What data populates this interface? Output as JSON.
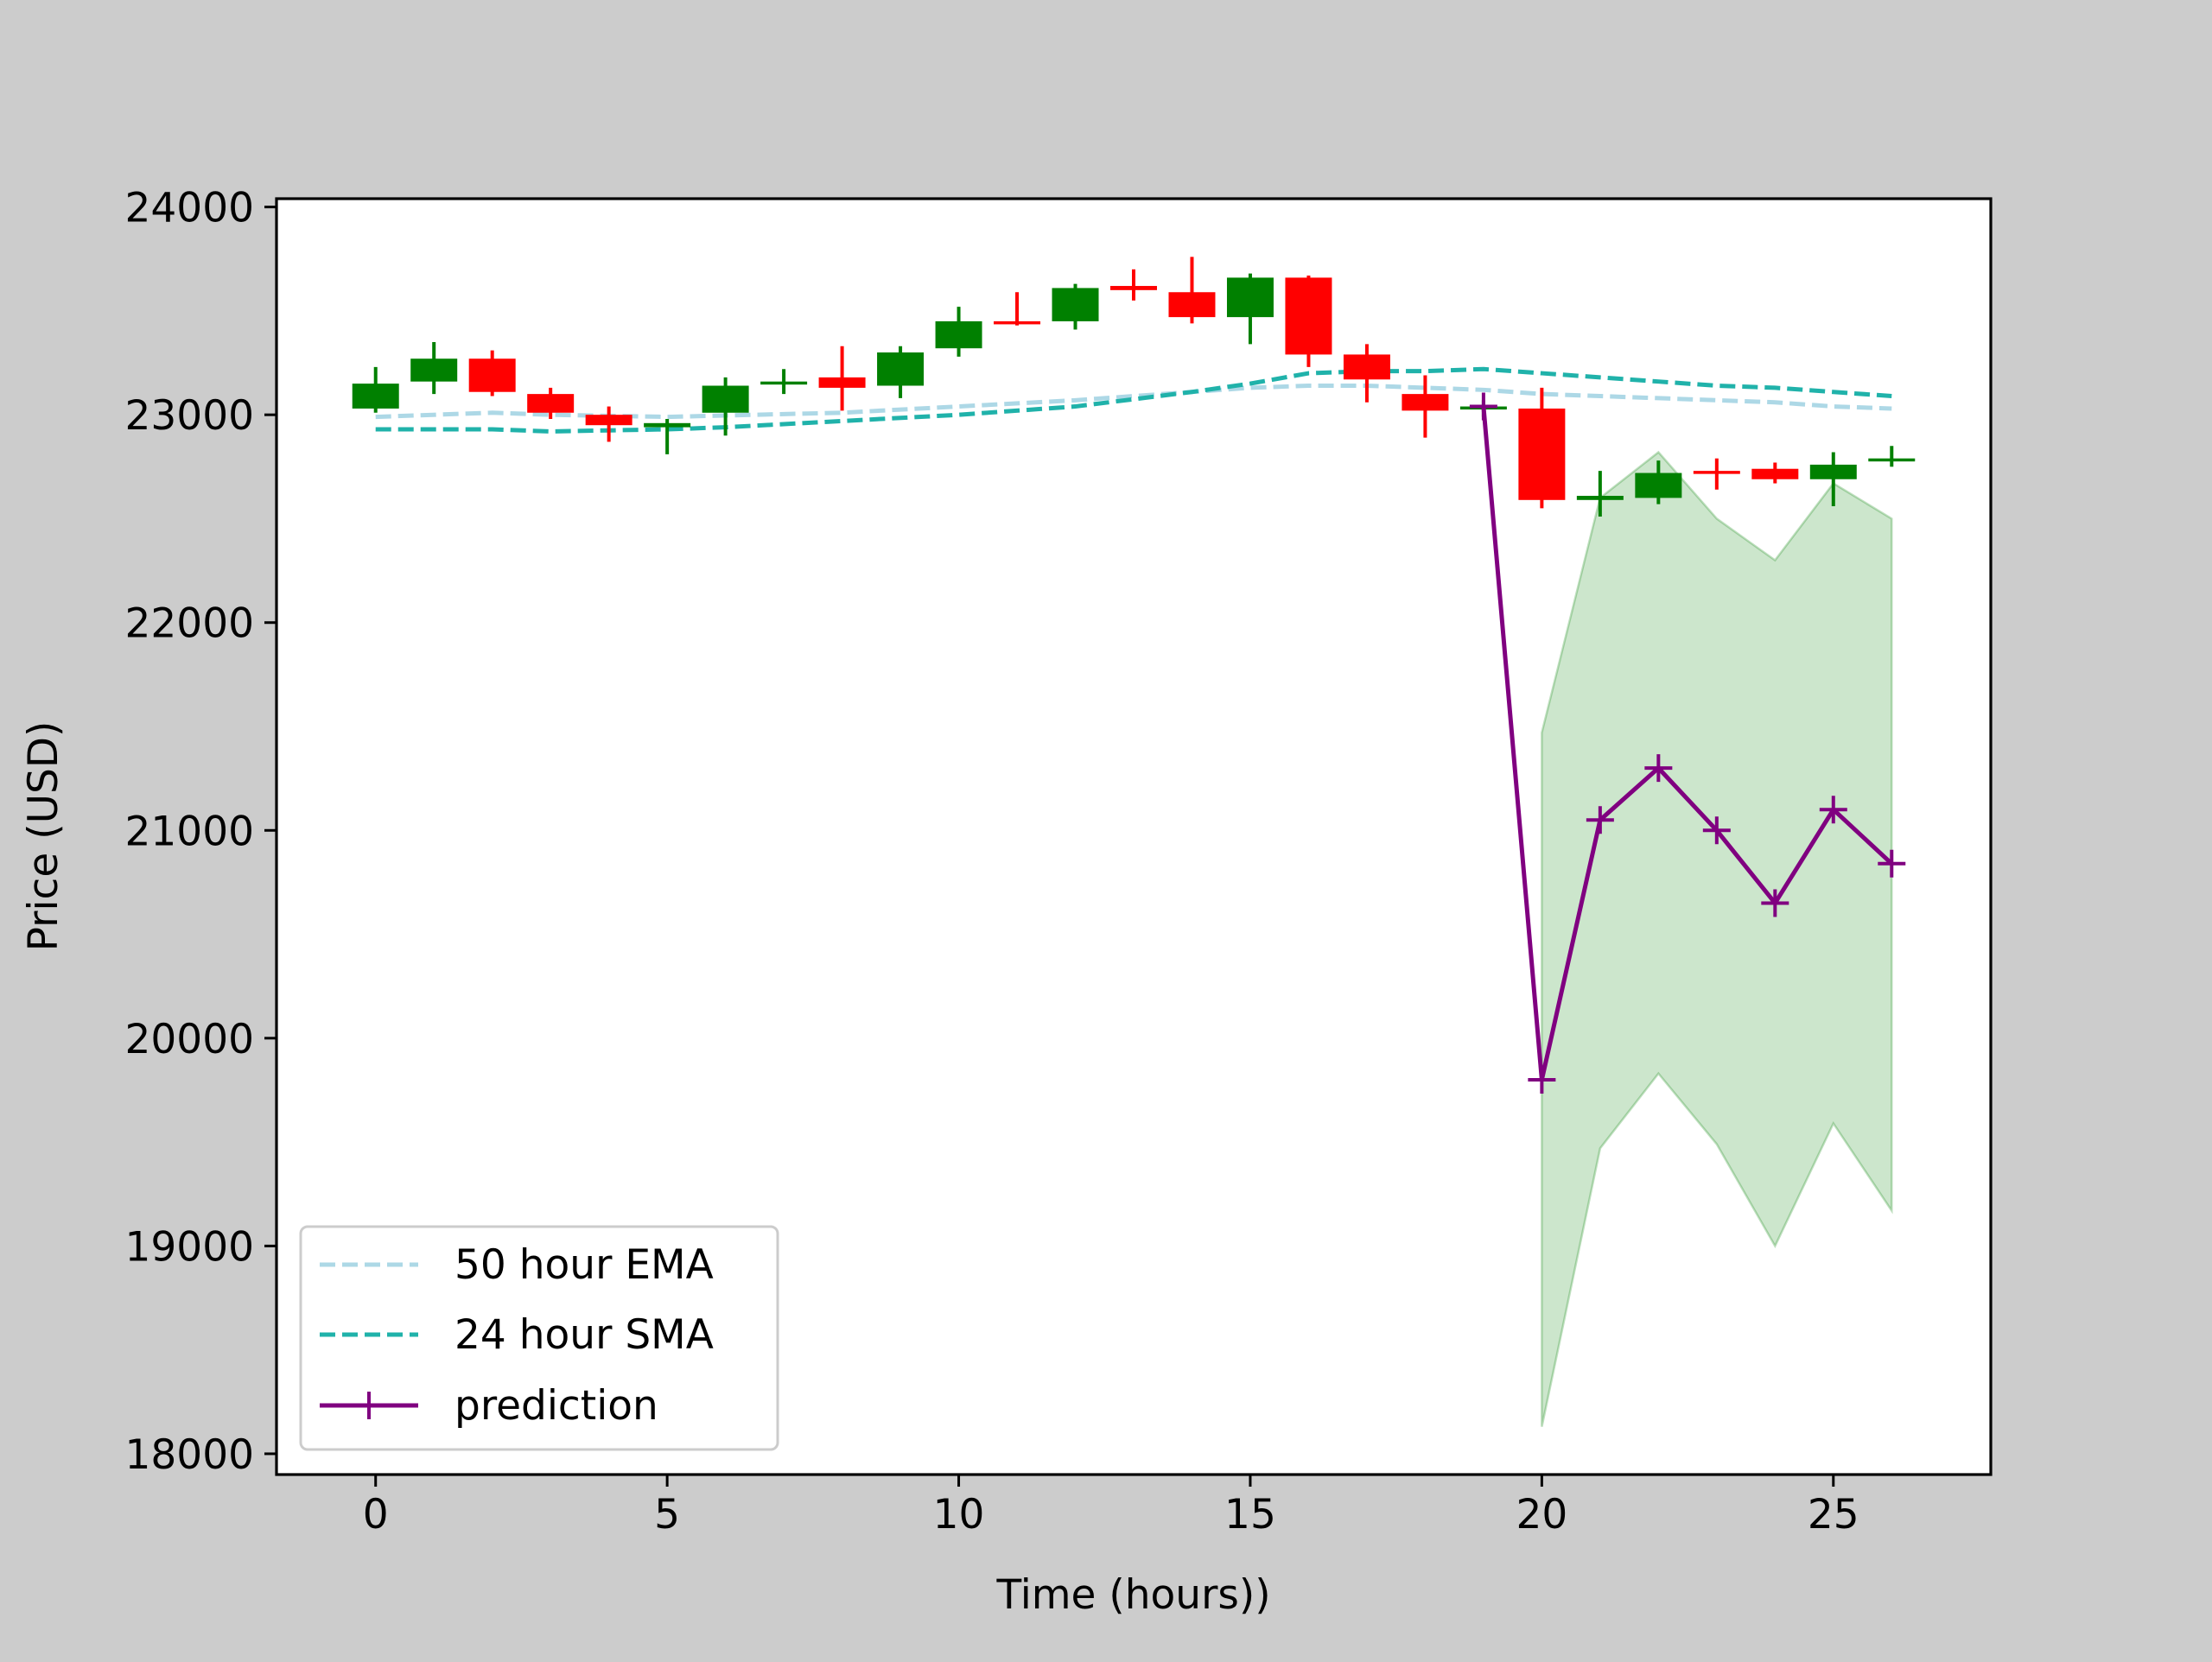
{
  "chart_data": {
    "type": "candlestick",
    "title": "",
    "xlabel": "Time (hours))",
    "ylabel": "Price (USD)",
    "xlim": [
      -1.7,
      27.7
    ],
    "ylim": [
      17900,
      24040
    ],
    "xticks": [
      0,
      5,
      10,
      15,
      20,
      25
    ],
    "yticks": [
      18000,
      19000,
      20000,
      21000,
      22000,
      23000,
      24000
    ],
    "grid": false,
    "legend_position": "lower-left",
    "colors": {
      "background": "#cccccc",
      "up": "#008000",
      "down": "#ff0000",
      "ema": "#add8e6",
      "sma": "#20b2aa",
      "prediction": "#800080",
      "band": "#008000"
    },
    "legend": [
      {
        "label": "50 hour EMA",
        "color": "#add8e6",
        "style": "dashed"
      },
      {
        "label": "24 hour SMA",
        "color": "#20b2aa",
        "style": "dashed"
      },
      {
        "label": "prediction",
        "color": "#800080",
        "style": "solid-plus-marker"
      }
    ],
    "candles": [
      {
        "t": 0,
        "open": 23030,
        "high": 23230,
        "low": 23010,
        "close": 23150
      },
      {
        "t": 1,
        "open": 23160,
        "high": 23350,
        "low": 23100,
        "close": 23270
      },
      {
        "t": 2,
        "open": 23270,
        "high": 23310,
        "low": 23090,
        "close": 23110
      },
      {
        "t": 3,
        "open": 23100,
        "high": 23130,
        "low": 22980,
        "close": 23010
      },
      {
        "t": 4,
        "open": 23000,
        "high": 23040,
        "low": 22870,
        "close": 22950
      },
      {
        "t": 5,
        "open": 22940,
        "high": 22980,
        "low": 22810,
        "close": 22960
      },
      {
        "t": 6,
        "open": 23010,
        "high": 23180,
        "low": 22900,
        "close": 23140
      },
      {
        "t": 7,
        "open": 23150,
        "high": 23220,
        "low": 23100,
        "close": 23160
      },
      {
        "t": 8,
        "open": 23180,
        "high": 23330,
        "low": 23020,
        "close": 23130
      },
      {
        "t": 9,
        "open": 23140,
        "high": 23330,
        "low": 23080,
        "close": 23300
      },
      {
        "t": 10,
        "open": 23320,
        "high": 23520,
        "low": 23280,
        "close": 23450
      },
      {
        "t": 11,
        "open": 23450,
        "high": 23590,
        "low": 23430,
        "close": 23440
      },
      {
        "t": 12,
        "open": 23450,
        "high": 23630,
        "low": 23410,
        "close": 23610
      },
      {
        "t": 13,
        "open": 23620,
        "high": 23700,
        "low": 23550,
        "close": 23600
      },
      {
        "t": 14,
        "open": 23590,
        "high": 23760,
        "low": 23440,
        "close": 23470
      },
      {
        "t": 15,
        "open": 23470,
        "high": 23680,
        "low": 23340,
        "close": 23660
      },
      {
        "t": 16,
        "open": 23660,
        "high": 23670,
        "low": 23230,
        "close": 23290
      },
      {
        "t": 17,
        "open": 23290,
        "high": 23340,
        "low": 23060,
        "close": 23170
      },
      {
        "t": 18,
        "open": 23100,
        "high": 23190,
        "low": 22890,
        "close": 23020
      },
      {
        "t": 19,
        "open": 23030,
        "high": 23070,
        "low": 22990,
        "close": 23040
      },
      {
        "t": 20,
        "open": 23030,
        "high": 23130,
        "low": 22550,
        "close": 22590
      },
      {
        "t": 21,
        "open": 22590,
        "high": 22730,
        "low": 22510,
        "close": 22610
      },
      {
        "t": 22,
        "open": 22600,
        "high": 22780,
        "low": 22570,
        "close": 22720
      },
      {
        "t": 23,
        "open": 22730,
        "high": 22790,
        "low": 22640,
        "close": 22720
      },
      {
        "t": 24,
        "open": 22740,
        "high": 22770,
        "low": 22670,
        "close": 22690
      },
      {
        "t": 25,
        "open": 22690,
        "high": 22820,
        "low": 22560,
        "close": 22760
      },
      {
        "t": 26,
        "open": 22780,
        "high": 22850,
        "low": 22750,
        "close": 22790
      }
    ],
    "series": [
      {
        "name": "50 hour EMA",
        "x": [
          0,
          2,
          3,
          5,
          8,
          12,
          15,
          16,
          17,
          18,
          19,
          20,
          21,
          22,
          23,
          24,
          25,
          26
        ],
        "values": [
          22990,
          23010,
          23000,
          22990,
          23010,
          23070,
          23130,
          23140,
          23140,
          23130,
          23120,
          23100,
          23090,
          23080,
          23070,
          23060,
          23040,
          23030
        ]
      },
      {
        "name": "24 hour SMA",
        "x": [
          0,
          2,
          3,
          5,
          6,
          8,
          10,
          12,
          14,
          15,
          16,
          17,
          18,
          19,
          20,
          21,
          22,
          23,
          24,
          25,
          26
        ],
        "values": [
          22930,
          22930,
          22920,
          22930,
          22940,
          22970,
          23000,
          23040,
          23110,
          23150,
          23200,
          23210,
          23210,
          23220,
          23200,
          23180,
          23160,
          23140,
          23130,
          23110,
          23090
        ]
      },
      {
        "name": "prediction",
        "x": [
          19,
          20,
          21,
          22,
          23,
          24,
          25,
          26
        ],
        "values": [
          23040,
          19800,
          21050,
          21300,
          21000,
          20650,
          21100,
          20840
        ]
      }
    ],
    "band": {
      "x": [
        20,
        21,
        22,
        23,
        24,
        25,
        26
      ],
      "upper": [
        21470,
        22600,
        22820,
        22500,
        22300,
        22670,
        22500
      ],
      "lower": [
        18130,
        19470,
        19830,
        19490,
        19000,
        19590,
        19170
      ]
    }
  }
}
